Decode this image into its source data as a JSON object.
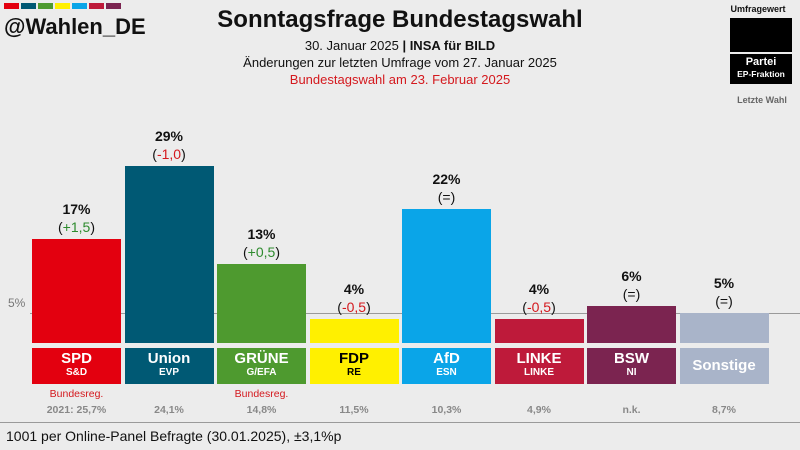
{
  "header": {
    "handle": "@Wahlen_DE",
    "title": "Sonntagsfrage Bundestagswahl",
    "date": "30. Januar 2025",
    "pollster": "INSA für BILD",
    "changes_note": "Änderungen zur letzten Umfrage vom 27. Januar 2025",
    "election_note": "Bundestagswahl am 23. Februar 2025",
    "stripe_colors": [
      "#e3000f",
      "#005974",
      "#4e9a2f",
      "#fff000",
      "#0aa5e8",
      "#be1a3a",
      "#7b2450"
    ]
  },
  "legend": {
    "poll_value": "Umfragewert",
    "party": "Partei",
    "ep_group": "EP-Fraktion",
    "last_election": "Letzte Wahl"
  },
  "chart_data": {
    "type": "bar",
    "title": "Sonntagsfrage Bundestagswahl",
    "ylim": [
      0,
      30
    ],
    "threshold": {
      "value": 5,
      "label": "5%"
    },
    "categories": [
      "SPD",
      "Union",
      "GRÜNE",
      "FDP",
      "AfD",
      "LINKE",
      "BSW",
      "Sonstige"
    ],
    "values": [
      17,
      29,
      13,
      4,
      22,
      4,
      6,
      5
    ],
    "bars": [
      {
        "party": "SPD",
        "ep": "S&D",
        "value": 17,
        "value_label": "17%",
        "change": "+1,5",
        "change_dir": "up",
        "color": "#e3000f",
        "note": "Bundesreg.",
        "last": "2021: 25,7%"
      },
      {
        "party": "Union",
        "ep": "EVP",
        "value": 29,
        "value_label": "29%",
        "change": "-1,0",
        "change_dir": "down",
        "color": "#005974",
        "note": "",
        "last": "24,1%"
      },
      {
        "party": "GRÜNE",
        "ep": "G/EFA",
        "value": 13,
        "value_label": "13%",
        "change": "+0,5",
        "change_dir": "up",
        "color": "#4e9a2f",
        "note": "Bundesreg.",
        "last": "14,8%"
      },
      {
        "party": "FDP",
        "ep": "RE",
        "value": 4,
        "value_label": "4%",
        "change": "-0,5",
        "change_dir": "down",
        "color": "#fff000",
        "text_color": "#000000",
        "note": "",
        "last": "11,5%"
      },
      {
        "party": "AfD",
        "ep": "ESN",
        "value": 22,
        "value_label": "22%",
        "change": "=",
        "change_dir": "same",
        "color": "#0aa5e8",
        "note": "",
        "last": "10,3%"
      },
      {
        "party": "LINKE",
        "ep": "LINKE",
        "value": 4,
        "value_label": "4%",
        "change": "-0,5",
        "change_dir": "down",
        "color": "#be1a3a",
        "note": "",
        "last": "4,9%"
      },
      {
        "party": "BSW",
        "ep": "NI",
        "value": 6,
        "value_label": "6%",
        "change": "=",
        "change_dir": "same",
        "color": "#7b2450",
        "note": "",
        "last": "n.k."
      },
      {
        "party": "Sonstige",
        "ep": "",
        "value": 5,
        "value_label": "5%",
        "change": "=",
        "change_dir": "same",
        "color": "#a9b4c9",
        "note": "",
        "last": "8,7%"
      }
    ],
    "change_colors": {
      "up": "#2e8b2e",
      "down": "#d4191e",
      "same": "#111111"
    }
  },
  "footer": {
    "text": "1001 per Online-Panel Befragte (30.01.2025), ±3,1%p"
  }
}
